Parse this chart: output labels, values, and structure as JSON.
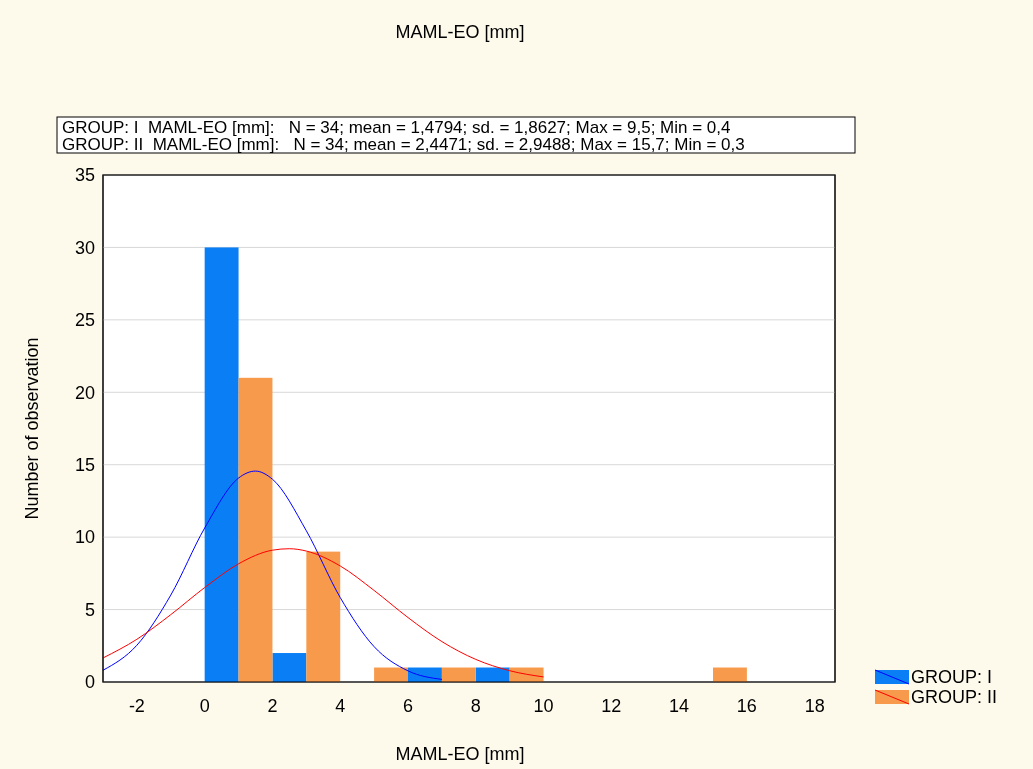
{
  "chart_data": {
    "type": "histogram",
    "title": "MAML-EO [mm]",
    "xlabel": "MAML-EO [mm]",
    "ylabel": "Number of observation",
    "annotations": [
      "GROUP: I  MAML-EO [mm]:   N = 34; mean = 1,4794; sd. = 1,8627; Max = 9,5; Min = 0,4",
      "GROUP: II  MAML-EO [mm]:   N = 34; mean = 2,4471; sd. = 2,9488; Max = 15,7; Min = 0,3"
    ],
    "bins": [
      0,
      2,
      4,
      6,
      8,
      10,
      12,
      14,
      16
    ],
    "series": [
      {
        "name": "GROUP: I",
        "color": "#0a7ff5",
        "values": [
          30,
          2,
          0,
          1,
          1,
          0,
          0,
          0
        ]
      },
      {
        "name": "GROUP: II",
        "color": "#f79a4c",
        "values": [
          21,
          9,
          1,
          1,
          1,
          0,
          0,
          1
        ]
      },
      {
        "type": "line",
        "color": "#0000ff",
        "x": [
          -3,
          -2,
          -1,
          0,
          1,
          1.5,
          2,
          3,
          4,
          5,
          6,
          7
        ],
        "values": [
          0.81,
          2.54,
          6.0,
          10.63,
          14.08,
          14.56,
          14.0,
          10.44,
          5.83,
          2.44,
          0.77,
          0.18
        ]
      },
      {
        "type": "line",
        "color": "#ff0000",
        "x": [
          -3,
          -2,
          -1,
          0,
          1,
          2,
          2.5,
          3,
          4,
          5,
          6,
          7,
          8,
          9,
          10
        ],
        "values": [
          1.66,
          2.95,
          4.65,
          6.52,
          8.16,
          9.1,
          9.2,
          9.04,
          8.01,
          6.32,
          4.45,
          2.79,
          1.56,
          0.78,
          0.35
        ]
      }
    ],
    "xlim": [
      -3,
      18.6
    ],
    "xticks": [
      -2,
      0,
      2,
      4,
      6,
      8,
      10,
      12,
      14,
      16,
      18
    ],
    "ylim": [
      0,
      35
    ],
    "yticks": [
      0,
      5,
      10,
      15,
      20,
      25,
      30,
      35
    ],
    "grid": "y",
    "legend": "bottom right",
    "marker": "none",
    "line_style": "solid"
  }
}
